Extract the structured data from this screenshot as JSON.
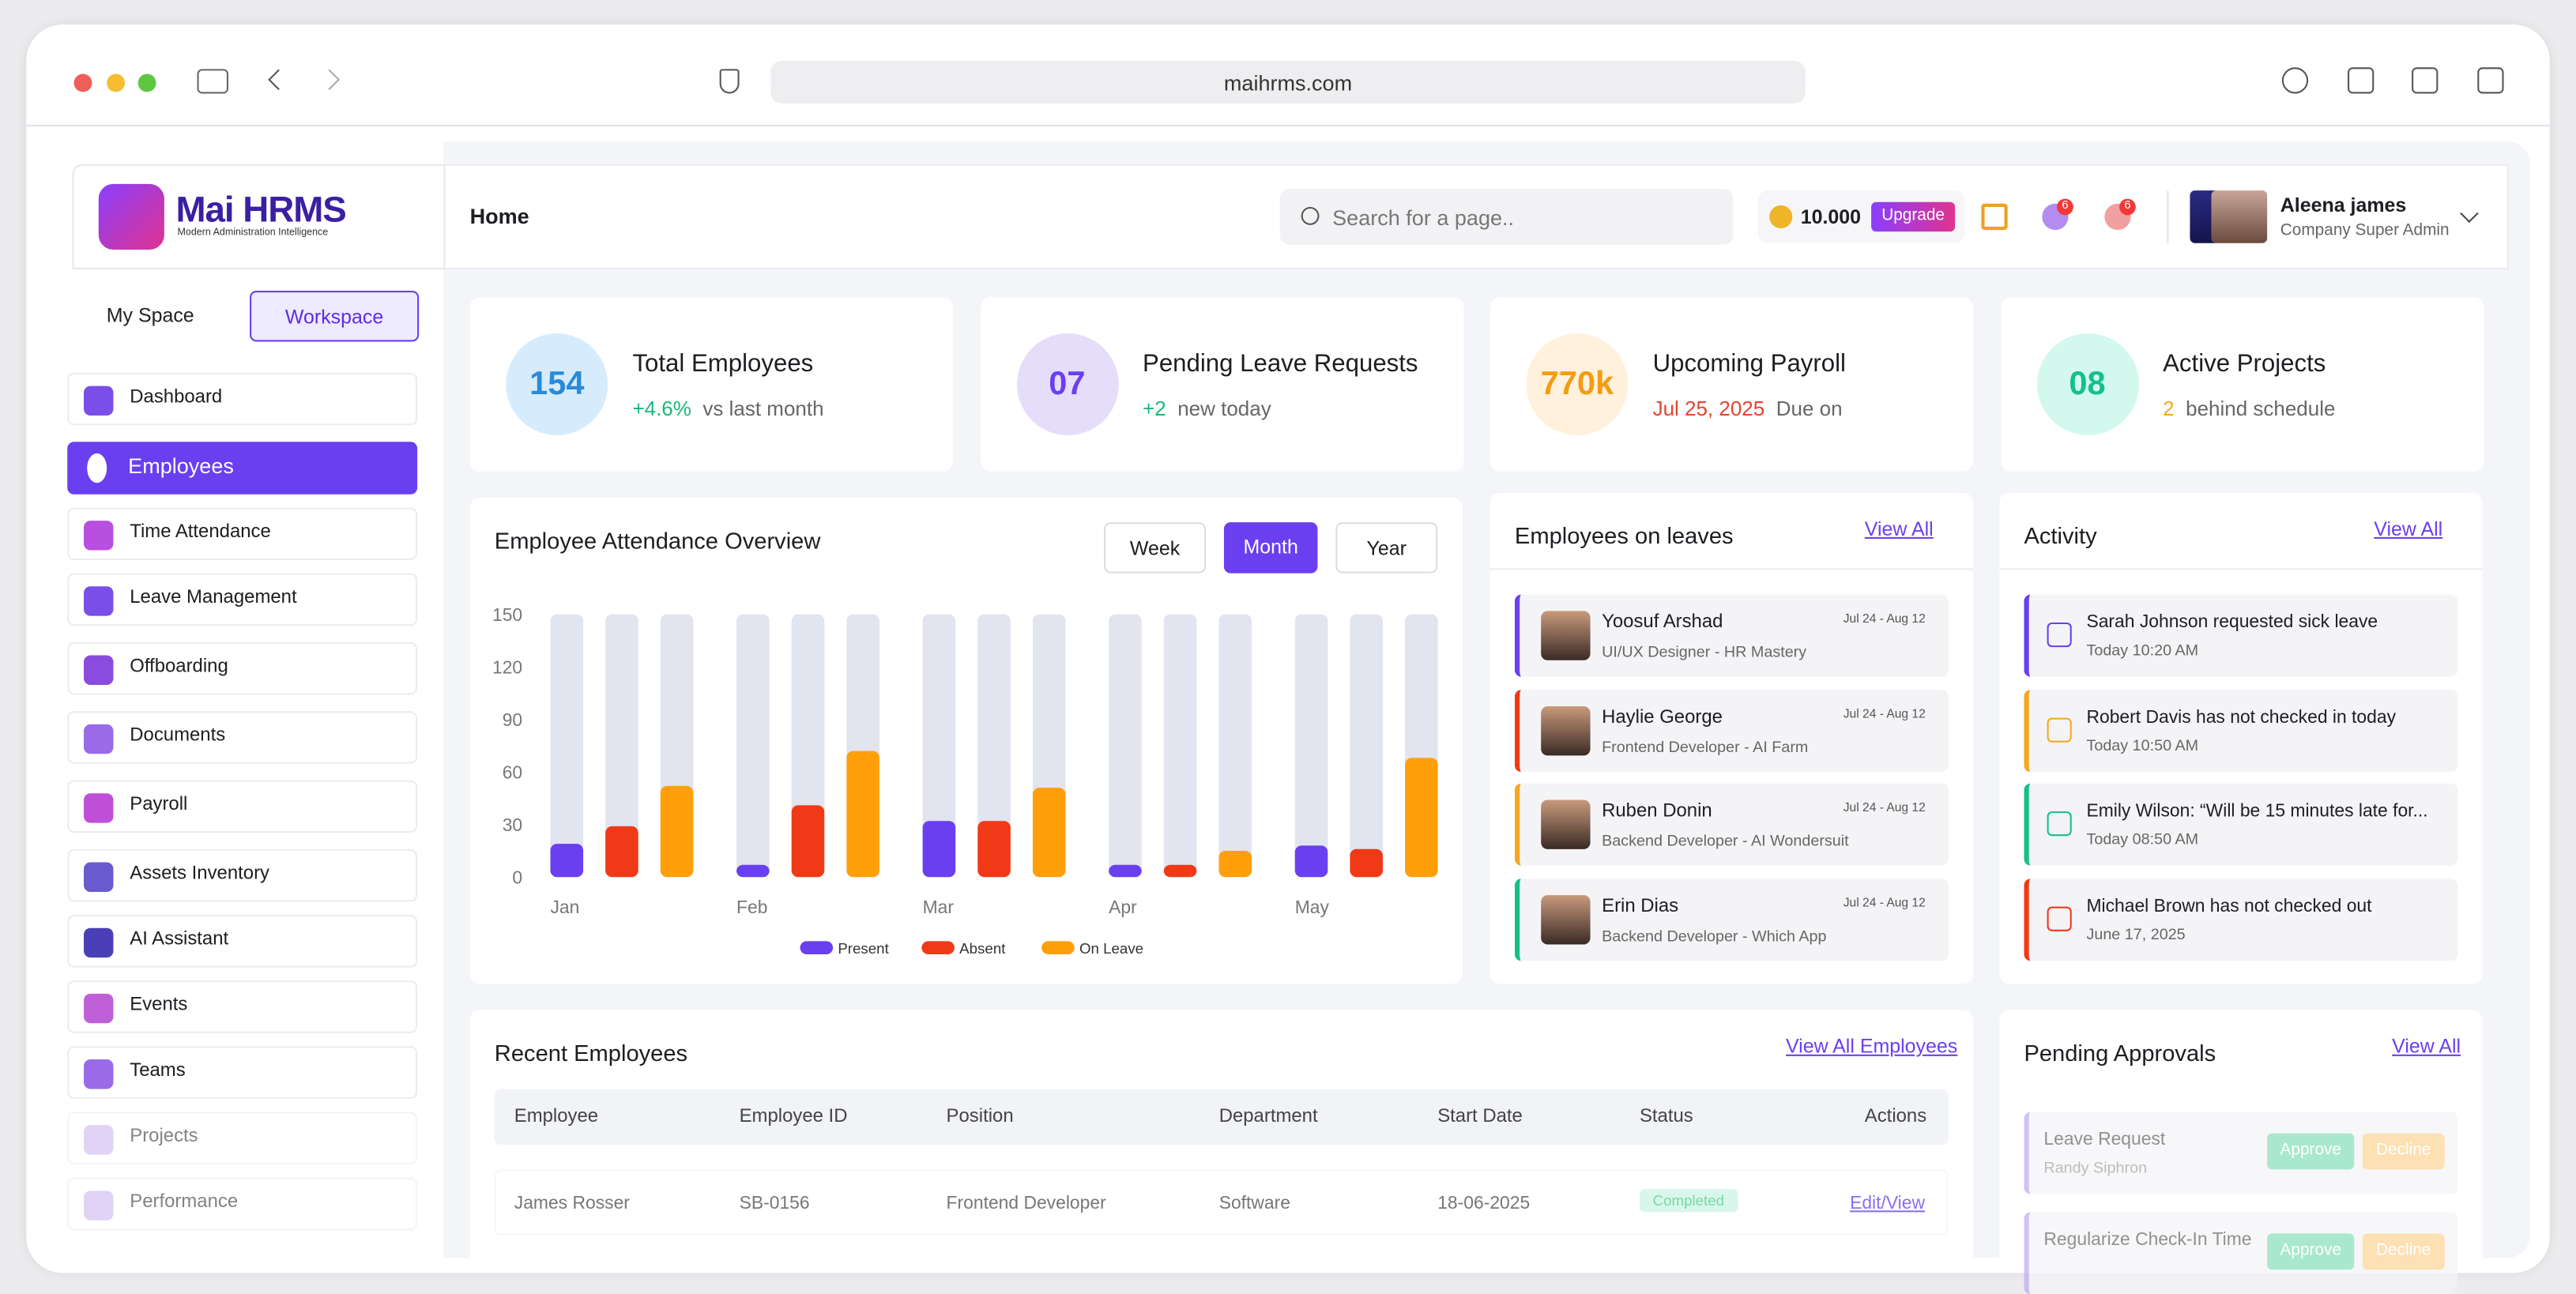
{
  "browser": {
    "url": "maihrms.com"
  },
  "brand": {
    "name": "Mai HRMS",
    "tagline": "Modern Administration Intelligence"
  },
  "tabs": [
    "My Space",
    "Workspace"
  ],
  "nav": [
    "Dashboard",
    "Employees",
    "Time Attendance",
    "Leave Management",
    "Offboarding",
    "Documents",
    "Payroll",
    "Assets Inventory",
    "AI Assistant",
    "Events",
    "Teams",
    "Projects",
    "Performance"
  ],
  "header": {
    "page": "Home",
    "search_placeholder": "Search for a page..",
    "credits": "10.000",
    "upgrade": "Upgrade",
    "badges": [
      "6",
      "6"
    ],
    "user_name": "Aleena james",
    "user_role": "Company Super Admin"
  },
  "stats": [
    {
      "value": "154",
      "title": "Total Employees",
      "delta": "+4.6%",
      "note": "vs last month"
    },
    {
      "value": "07",
      "title": "Pending Leave Requests",
      "delta": "+2",
      "note": "new today"
    },
    {
      "value": "770k",
      "title": "Upcoming Payroll",
      "delta": "Jul 25, 2025",
      "note": "Due on"
    },
    {
      "value": "08",
      "title": "Active Projects",
      "delta": "2",
      "note": "behind schedule"
    }
  ],
  "chart_data": {
    "type": "bar",
    "title": "Employee Attendance Overview",
    "periods": [
      "Week",
      "Month",
      "Year"
    ],
    "categories": [
      "Jan",
      "Feb",
      "Mar",
      "Apr",
      "May"
    ],
    "series": [
      {
        "name": "Present",
        "color": "#6a3ff0",
        "values": [
          19,
          7,
          32,
          7,
          18
        ]
      },
      {
        "name": "Absent",
        "color": "#f03a17",
        "values": [
          29,
          41,
          32,
          7,
          16
        ]
      },
      {
        "name": "On Leave",
        "color": "#ff9f0a",
        "values": [
          52,
          72,
          51,
          15,
          68
        ]
      }
    ],
    "ylim": [
      0,
      150
    ],
    "yticks": [
      0,
      30,
      60,
      90,
      120,
      150
    ]
  },
  "leaves": {
    "title": "Employees on leaves",
    "link": "View All",
    "items": [
      {
        "name": "Yoosuf Arshad",
        "role": "UI/UX Designer -  HR Mastery",
        "dates": "Jul 24 - Aug 12"
      },
      {
        "name": "Haylie George",
        "role": "Frontend Developer -  AI Farm",
        "dates": "Jul 24 - Aug 12"
      },
      {
        "name": "Ruben Donin",
        "role": "Backend Developer -  AI Wondersuit",
        "dates": "Jul 24 - Aug 12"
      },
      {
        "name": "Erin Dias",
        "role": "Backend Developer -  Which App",
        "dates": "Jul 24 - Aug 12"
      }
    ]
  },
  "activity": {
    "title": "Activity",
    "link": "View All",
    "items": [
      {
        "text": "Sarah Johnson requested sick leave",
        "time": "Today 10:20 AM"
      },
      {
        "text": "Robert Davis has not checked in today",
        "time": "Today 10:50 AM"
      },
      {
        "text": "Emily Wilson: “Will be 15 minutes late for...",
        "time": "Today 08:50 AM"
      },
      {
        "text": "Michael Brown has not checked out",
        "time": "June 17, 2025"
      }
    ]
  },
  "recent": {
    "title": "Recent Employees",
    "link": "View All Employees",
    "columns": [
      "Employee",
      "Employee ID",
      "Position",
      "Department",
      "Start Date",
      "Status",
      "Actions"
    ],
    "rows": [
      [
        "James Rosser",
        "SB-0156",
        "Frontend Developer",
        "Software",
        "18-06-2025",
        "Completed",
        "Edit/View"
      ]
    ]
  },
  "approvals": {
    "title": "Pending Approvals",
    "link": "View All",
    "actions": [
      "Approve",
      "Decline"
    ],
    "items": [
      {
        "title": "Leave Request",
        "who": "Randy Siphron"
      },
      {
        "title": "Regularize Check-In Time",
        "who": ""
      }
    ]
  }
}
